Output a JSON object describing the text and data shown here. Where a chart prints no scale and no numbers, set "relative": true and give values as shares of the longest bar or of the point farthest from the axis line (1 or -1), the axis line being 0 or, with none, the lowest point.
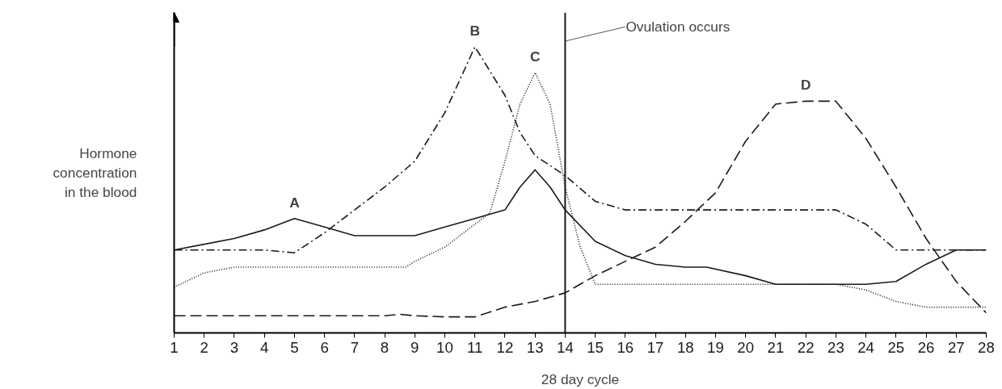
{
  "chart_data": {
    "type": "line",
    "relative": true,
    "xlabel": "28 day cycle",
    "ylabel": "Hormone concentration in the blood",
    "xlim": [
      1,
      28
    ],
    "xticks": [
      1,
      2,
      3,
      4,
      5,
      6,
      7,
      8,
      9,
      10,
      11,
      12,
      13,
      14,
      15,
      16,
      17,
      18,
      19,
      20,
      21,
      22,
      23,
      24,
      25,
      26,
      27,
      28
    ],
    "grid": false,
    "marker": "none",
    "series": [
      {
        "color": "#1a1a1a",
        "line_style": "solid",
        "x": [
          1,
          2,
          3,
          4,
          5,
          6,
          7,
          8,
          9,
          10,
          11,
          12,
          12.5,
          13,
          13.5,
          14,
          15,
          16,
          17,
          18,
          18.7,
          20,
          21,
          22,
          23,
          24,
          25,
          26,
          27,
          28
        ],
        "values": [
          0.29,
          0.31,
          0.33,
          0.36,
          0.4,
          0.37,
          0.34,
          0.34,
          0.34,
          0.37,
          0.4,
          0.43,
          0.51,
          0.57,
          0.51,
          0.43,
          0.32,
          0.27,
          0.24,
          0.23,
          0.23,
          0.2,
          0.17,
          0.17,
          0.17,
          0.17,
          0.18,
          0.24,
          0.29,
          0.29
        ]
      },
      {
        "color": "#1a1a1a",
        "line_style": "dashdot",
        "x": [
          1,
          2,
          3,
          4,
          5,
          6,
          7,
          8,
          9,
          10,
          11,
          12,
          12.5,
          13,
          14,
          15,
          16,
          18,
          20,
          22,
          23,
          24,
          25,
          26,
          27,
          28
        ],
        "values": [
          0.29,
          0.29,
          0.29,
          0.29,
          0.28,
          0.35,
          0.43,
          0.51,
          0.6,
          0.77,
          1.0,
          0.83,
          0.7,
          0.62,
          0.55,
          0.46,
          0.43,
          0.43,
          0.43,
          0.43,
          0.43,
          0.38,
          0.29,
          0.29,
          0.29,
          0.29
        ]
      },
      {
        "color": "#1a1a1a",
        "line_style": "dotted",
        "x": [
          1,
          2,
          3,
          5,
          7,
          8.7,
          9,
          10,
          11,
          11.5,
          12,
          12.5,
          13,
          13.5,
          14,
          14.5,
          15,
          16,
          18,
          20,
          23,
          24,
          25,
          26,
          27,
          28
        ],
        "values": [
          0.16,
          0.21,
          0.23,
          0.23,
          0.23,
          0.23,
          0.25,
          0.3,
          0.38,
          0.42,
          0.6,
          0.8,
          0.91,
          0.8,
          0.51,
          0.3,
          0.17,
          0.17,
          0.17,
          0.17,
          0.17,
          0.15,
          0.11,
          0.09,
          0.09,
          0.09
        ]
      },
      {
        "color": "#1a1a1a",
        "line_style": "dashed",
        "x": [
          1,
          3,
          5,
          7,
          8,
          8.5,
          9,
          10,
          11,
          12,
          13,
          14,
          15,
          16,
          17,
          18,
          19,
          20,
          21,
          22,
          23,
          24,
          25,
          26,
          27,
          28
        ],
        "values": [
          0.06,
          0.06,
          0.06,
          0.06,
          0.06,
          0.065,
          0.06,
          0.056,
          0.056,
          0.09,
          0.11,
          0.14,
          0.2,
          0.25,
          0.3,
          0.39,
          0.49,
          0.67,
          0.8,
          0.81,
          0.81,
          0.68,
          0.51,
          0.33,
          0.18,
          0.07
        ]
      }
    ],
    "annotations": [
      {
        "text": "A",
        "x": 5,
        "y": 0.4
      },
      {
        "text": "B",
        "x": 11,
        "y": 1.0
      },
      {
        "text": "C",
        "x": 13,
        "y": 0.91
      },
      {
        "text": "D",
        "x": 22,
        "y": 0.81
      }
    ],
    "ref_lines": [
      {
        "axis": "x",
        "value": 14,
        "label": "Ovulation occurs",
        "color": "#1a1a1a",
        "line_style": "solid"
      }
    ]
  }
}
